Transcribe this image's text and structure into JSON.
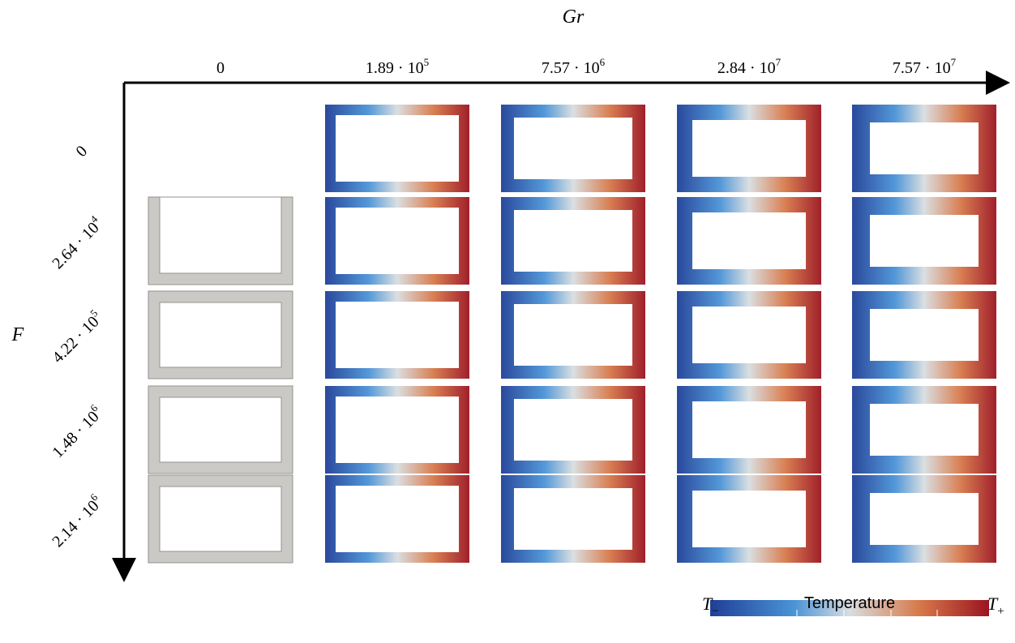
{
  "axes": {
    "x_label": "Gr",
    "y_label": "F"
  },
  "columns": [
    {
      "base": "0"
    },
    {
      "base": "1.89 · 10",
      "exp": "5"
    },
    {
      "base": "7.57 · 10",
      "exp": "6"
    },
    {
      "base": "2.84 · 10",
      "exp": "7"
    },
    {
      "base": "7.57 · 10",
      "exp": "7"
    }
  ],
  "rows": [
    {
      "base": "0"
    },
    {
      "base": "2.64 · 10",
      "exp": "4"
    },
    {
      "base": "4.22 · 10",
      "exp": "5"
    },
    {
      "base": "1.48 · 10",
      "exp": "6"
    },
    {
      "base": "2.14 · 10",
      "exp": "6"
    }
  ],
  "colorbar": {
    "title": "Temperature",
    "min": {
      "base": "T",
      "sub": "−"
    },
    "max": {
      "base": "T",
      "sub": "+"
    }
  }
}
